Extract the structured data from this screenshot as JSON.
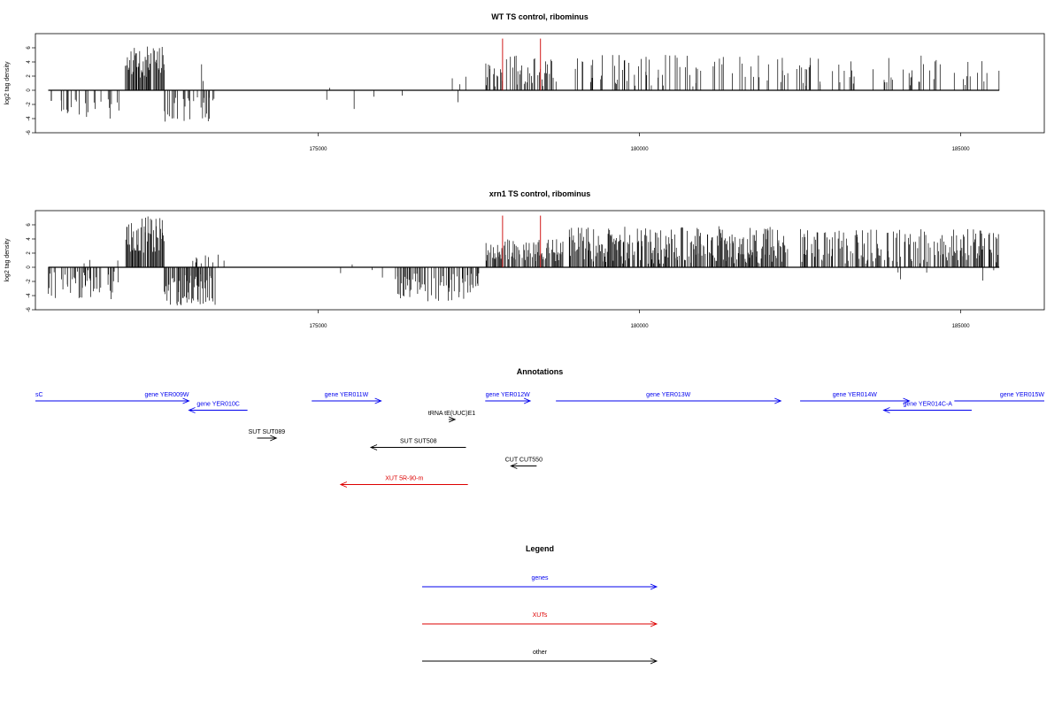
{
  "chart_data": [
    {
      "type": "bar",
      "title": "WT TS control, ribominus",
      "ylabel": "log2 tag density",
      "xlim": [
        170600,
        186300
      ],
      "ylim": [
        -6,
        8
      ],
      "xticks": [
        175000,
        180000,
        185000
      ],
      "yticks": [
        -6,
        -4,
        -2,
        0,
        2,
        4,
        6
      ],
      "regions": [
        {
          "start": 170800,
          "end": 171900,
          "min": -4,
          "max": -0.5,
          "density": 0.2,
          "seed": 11
        },
        {
          "start": 172000,
          "end": 172600,
          "min": 1.8,
          "max": 6.3,
          "density": 0.95,
          "seed": 12
        },
        {
          "start": 172600,
          "end": 173400,
          "min": -4.6,
          "max": -1,
          "density": 0.45,
          "seed": 13
        },
        {
          "start": 173000,
          "end": 173600,
          "min": 0.6,
          "max": 4.2,
          "density": 0.08,
          "seed": 14
        },
        {
          "start": 175000,
          "end": 177300,
          "min": -3,
          "max": 3.2,
          "density": 0.05,
          "seed": 15
        },
        {
          "start": 177600,
          "end": 178700,
          "min": 0.5,
          "max": 5,
          "density": 0.5,
          "seed": 16
        },
        {
          "start": 178900,
          "end": 185600,
          "min": 0.5,
          "max": 5,
          "density": 0.2,
          "seed": 17
        }
      ],
      "markers": [
        177870,
        178460
      ],
      "marker_height": 7.3,
      "marker_color": "#cc0000"
    },
    {
      "type": "bar",
      "title": "xrn1 TS control, ribominus",
      "ylabel": "log2 tag density",
      "xlim": [
        170600,
        186300
      ],
      "ylim": [
        -6,
        8
      ],
      "xticks": [
        175000,
        180000,
        185000
      ],
      "yticks": [
        -6,
        -4,
        -2,
        0,
        2,
        4,
        6
      ],
      "regions": [
        {
          "start": 170800,
          "end": 171900,
          "min": -4.5,
          "max": -0.4,
          "density": 0.45,
          "seed": 21
        },
        {
          "start": 171300,
          "end": 172000,
          "min": 0.5,
          "max": 1.2,
          "density": 0.05,
          "seed": 22
        },
        {
          "start": 172000,
          "end": 172600,
          "min": 2,
          "max": 7.2,
          "density": 0.95,
          "seed": 23
        },
        {
          "start": 172600,
          "end": 173400,
          "min": -5.5,
          "max": -1,
          "density": 0.85,
          "seed": 24
        },
        {
          "start": 173000,
          "end": 173600,
          "min": 0.5,
          "max": 1.8,
          "density": 0.2,
          "seed": 25
        },
        {
          "start": 175000,
          "end": 176100,
          "min": -2.5,
          "max": 1.5,
          "density": 0.06,
          "seed": 26
        },
        {
          "start": 176200,
          "end": 177500,
          "min": -4.8,
          "max": -0.5,
          "density": 0.55,
          "seed": 27
        },
        {
          "start": 177600,
          "end": 178800,
          "min": 0.8,
          "max": 4,
          "density": 0.8,
          "seed": 28
        },
        {
          "start": 178900,
          "end": 182300,
          "min": 0.5,
          "max": 5.8,
          "density": 0.85,
          "seed": 29
        },
        {
          "start": 182500,
          "end": 185600,
          "min": 0.5,
          "max": 5.4,
          "density": 0.55,
          "seed": 30
        },
        {
          "start": 184000,
          "end": 185600,
          "min": -2.2,
          "max": -0.4,
          "density": 0.08,
          "seed": 31
        }
      ],
      "markers": [
        177870,
        178460
      ],
      "marker_height": 7.3,
      "marker_color": "#cc0000"
    }
  ],
  "annotations": {
    "title": "Annotations",
    "items": [
      {
        "label": "sC",
        "start": 170600,
        "end": 172380,
        "dir": "none",
        "row": 0,
        "label_at": "left",
        "kind": "gene"
      },
      {
        "label": "gene YER009W",
        "start": 172300,
        "end": 172990,
        "dir": "right",
        "row": 0,
        "label_at": "center",
        "kind": "gene"
      },
      {
        "label": "gene YER010C",
        "start": 172990,
        "end": 173900,
        "dir": "left",
        "row": 1,
        "label_at": "center",
        "kind": "gene"
      },
      {
        "label": "gene YER011W",
        "start": 174900,
        "end": 175980,
        "dir": "right",
        "row": 0,
        "label_at": "center",
        "kind": "gene"
      },
      {
        "label": "gene YER012W",
        "start": 177600,
        "end": 178300,
        "dir": "right",
        "row": 0,
        "label_at": "center",
        "kind": "gene"
      },
      {
        "label": "gene YER013W",
        "start": 178700,
        "end": 182200,
        "dir": "right",
        "row": 0,
        "label_at": "center",
        "kind": "gene"
      },
      {
        "label": "gene YER014W",
        "start": 182500,
        "end": 184200,
        "dir": "right",
        "row": 0,
        "label_at": "center",
        "kind": "gene"
      },
      {
        "label": "gene YER014C-A",
        "start": 183800,
        "end": 185170,
        "dir": "left",
        "row": 1,
        "label_at": "center",
        "kind": "gene"
      },
      {
        "label": "gene YER015W",
        "start": 184900,
        "end": 186300,
        "dir": "none",
        "row": 0,
        "label_at": "right",
        "kind": "gene"
      },
      {
        "label": "tRNA tE(UUC)E1",
        "start": 177030,
        "end": 177130,
        "dir": "right",
        "row": 2,
        "label_at": "center",
        "kind": "other"
      },
      {
        "label": "SUT SUT089",
        "start": 174050,
        "end": 174350,
        "dir": "right",
        "row": 4,
        "label_at": "center",
        "kind": "other"
      },
      {
        "label": "SUT SUT508",
        "start": 175820,
        "end": 177300,
        "dir": "left",
        "row": 5,
        "label_at": "center",
        "kind": "other"
      },
      {
        "label": "CUT CUT550",
        "start": 178000,
        "end": 178400,
        "dir": "left",
        "row": 7,
        "label_at": "center",
        "kind": "other"
      },
      {
        "label": "XUT 5R-90-m",
        "start": 175350,
        "end": 177330,
        "dir": "left",
        "row": 9,
        "label_at": "center",
        "kind": "xut"
      }
    ]
  },
  "legend": {
    "title": "Legend",
    "items": [
      {
        "label": "genes",
        "kind": "gene"
      },
      {
        "label": "XUTs",
        "kind": "xut"
      },
      {
        "label": "other",
        "kind": "other"
      }
    ]
  },
  "colors": {
    "gene": "#0000ee",
    "xut": "#dd0000",
    "other": "#000000"
  }
}
